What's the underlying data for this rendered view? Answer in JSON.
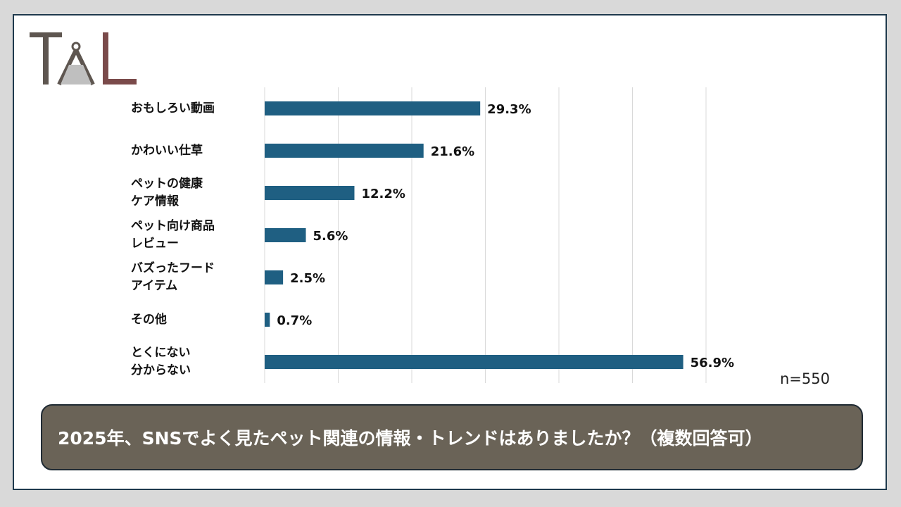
{
  "colors": {
    "bar": "#1f5f82",
    "grid": "#d9d9d9",
    "title_bg": "#6a6357",
    "frame": "#1f3a4d"
  },
  "logo": {
    "text": "TAL"
  },
  "question": "2025年、SNSでよく見たペット関連の情報・トレンドはありましたか？（複数回答可）",
  "sample_size": "n=550",
  "chart_data": {
    "type": "bar",
    "orientation": "horizontal",
    "categories": [
      "おもしろい動画",
      "かわいい仕草",
      "ペットの健康\nケア情報",
      "ペット向け商品\nレビュー",
      "バズったフード\nアイテム",
      "その他",
      "とくにない\n分からない"
    ],
    "values": [
      29.3,
      21.6,
      12.2,
      5.6,
      2.5,
      0.7,
      56.9
    ],
    "value_labels": [
      "29.3%",
      "21.6%",
      "12.2%",
      "5.6%",
      "2.5%",
      "0.7%",
      "56.9%"
    ],
    "xlim": [
      0,
      60
    ],
    "grid": true,
    "legend": "none"
  }
}
